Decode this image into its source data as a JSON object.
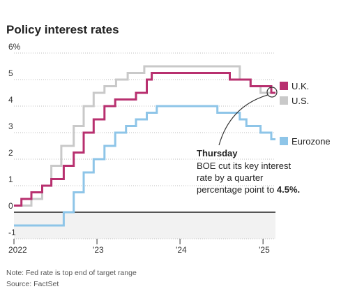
{
  "chart_data": {
    "type": "line",
    "step": true,
    "title": "Policy interest rates",
    "y_ticks": [
      "6%",
      "5",
      "4",
      "3",
      "2",
      "1",
      "0",
      "-1"
    ],
    "y_tick_values": [
      6,
      5,
      4,
      3,
      2,
      1,
      0,
      -1
    ],
    "x_ticks": [
      "2022",
      "'23",
      "'24",
      "'25"
    ],
    "x_tick_values": [
      2022,
      2023,
      2024,
      2025
    ],
    "ylim": [
      -1,
      6
    ],
    "grid": true,
    "legend_position": "right",
    "series": [
      {
        "name": "U.S.",
        "color": "#c9c9c9",
        "points": [
          [
            2022.0,
            0.25
          ],
          [
            2022.21,
            0.5
          ],
          [
            2022.34,
            1.0
          ],
          [
            2022.45,
            1.75
          ],
          [
            2022.57,
            2.5
          ],
          [
            2022.72,
            3.25
          ],
          [
            2022.84,
            4.0
          ],
          [
            2022.96,
            4.5
          ],
          [
            2023.09,
            4.75
          ],
          [
            2023.23,
            5.0
          ],
          [
            2023.37,
            5.25
          ],
          [
            2023.57,
            5.5
          ],
          [
            2024.72,
            5.0
          ],
          [
            2024.85,
            4.75
          ],
          [
            2024.97,
            4.5
          ],
          [
            2025.15,
            4.5
          ]
        ]
      },
      {
        "name": "U.K.",
        "color": "#b8306f",
        "points": [
          [
            2022.0,
            0.25
          ],
          [
            2022.09,
            0.5
          ],
          [
            2022.21,
            0.75
          ],
          [
            2022.34,
            1.0
          ],
          [
            2022.45,
            1.25
          ],
          [
            2022.6,
            1.75
          ],
          [
            2022.72,
            2.25
          ],
          [
            2022.84,
            3.0
          ],
          [
            2022.96,
            3.5
          ],
          [
            2023.09,
            4.0
          ],
          [
            2023.22,
            4.25
          ],
          [
            2023.47,
            4.5
          ],
          [
            2023.6,
            5.0
          ],
          [
            2023.66,
            5.25
          ],
          [
            2024.6,
            5.0
          ],
          [
            2024.85,
            4.75
          ],
          [
            2025.1,
            4.5
          ],
          [
            2025.15,
            4.5
          ]
        ]
      },
      {
        "name": "Eurozone",
        "color": "#8ec5e8",
        "points": [
          [
            2022.0,
            -0.5
          ],
          [
            2022.6,
            0.0
          ],
          [
            2022.72,
            0.75
          ],
          [
            2022.84,
            1.5
          ],
          [
            2022.96,
            2.0
          ],
          [
            2023.09,
            2.5
          ],
          [
            2023.22,
            3.0
          ],
          [
            2023.35,
            3.25
          ],
          [
            2023.47,
            3.5
          ],
          [
            2023.6,
            3.75
          ],
          [
            2023.72,
            4.0
          ],
          [
            2024.45,
            3.75
          ],
          [
            2024.72,
            3.5
          ],
          [
            2024.8,
            3.25
          ],
          [
            2024.97,
            3.0
          ],
          [
            2025.1,
            2.75
          ],
          [
            2025.15,
            2.75
          ]
        ]
      }
    ],
    "annotation": {
      "heading": "Thursday",
      "line1": "BOE cut its key interest",
      "line2": "rate by a quarter",
      "line3_prefix": "percentage point to ",
      "line3_bold": "4.5%."
    },
    "notes": [
      "Note: Fed rate is top end of target range",
      "Source: FactSet"
    ]
  }
}
